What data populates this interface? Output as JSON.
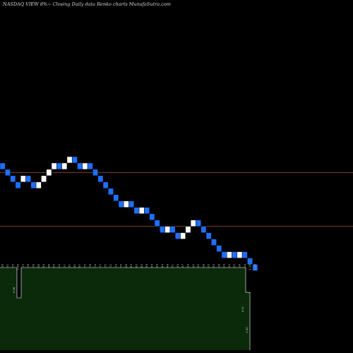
{
  "chart_data": {
    "type": "renko",
    "title": "NASDAQ VIEW 8%~  Closing Daily data  Renko  charts MunafaSutra.com",
    "colors": {
      "background": "#000000",
      "up_brick": "#ffffff",
      "down_brick": "#1f6fff",
      "reference_line": "#a0522d",
      "volume_fill": "#0a2a0a",
      "volume_edge": "#ffffff"
    },
    "reference_lines": [
      5.0,
      3.3
    ],
    "y_range": [
      2.2,
      10.0
    ],
    "bricks": [
      {
        "dir": "down",
        "close": 5.1
      },
      {
        "dir": "down",
        "close": 4.9
      },
      {
        "dir": "down",
        "close": 4.7
      },
      {
        "dir": "down",
        "close": 4.5
      },
      {
        "dir": "up",
        "close": 4.9
      },
      {
        "dir": "down",
        "close": 4.7
      },
      {
        "dir": "down",
        "close": 4.5
      },
      {
        "dir": "up",
        "close": 4.7
      },
      {
        "dir": "up",
        "close": 4.9
      },
      {
        "dir": "up",
        "close": 5.1
      },
      {
        "dir": "up",
        "close": 5.3
      },
      {
        "dir": "down",
        "close": 5.1
      },
      {
        "dir": "up",
        "close": 5.3
      },
      {
        "dir": "up",
        "close": 5.5
      },
      {
        "dir": "down",
        "close": 5.3
      },
      {
        "dir": "down",
        "close": 5.1
      },
      {
        "dir": "up",
        "close": 5.3
      },
      {
        "dir": "down",
        "close": 5.1
      },
      {
        "dir": "down",
        "close": 4.9
      },
      {
        "dir": "down",
        "close": 4.7
      },
      {
        "dir": "down",
        "close": 4.5
      },
      {
        "dir": "down",
        "close": 4.3
      },
      {
        "dir": "down",
        "close": 4.1
      },
      {
        "dir": "down",
        "close": 3.9
      },
      {
        "dir": "up",
        "close": 4.1
      },
      {
        "dir": "down",
        "close": 3.9
      },
      {
        "dir": "down",
        "close": 3.7
      },
      {
        "dir": "up",
        "close": 3.9
      },
      {
        "dir": "down",
        "close": 3.7
      },
      {
        "dir": "down",
        "close": 3.5
      },
      {
        "dir": "down",
        "close": 3.3
      },
      {
        "dir": "down",
        "close": 3.1
      },
      {
        "dir": "up",
        "close": 3.3
      },
      {
        "dir": "down",
        "close": 3.1
      },
      {
        "dir": "down",
        "close": 2.9
      },
      {
        "dir": "up",
        "close": 3.1
      },
      {
        "dir": "up",
        "close": 3.3
      },
      {
        "dir": "up",
        "close": 3.5
      },
      {
        "dir": "down",
        "close": 3.3
      },
      {
        "dir": "down",
        "close": 3.1
      },
      {
        "dir": "down",
        "close": 2.9
      },
      {
        "dir": "down",
        "close": 2.7
      },
      {
        "dir": "down",
        "close": 2.5
      },
      {
        "dir": "down",
        "close": 2.3
      },
      {
        "dir": "up",
        "close": 2.5
      },
      {
        "dir": "down",
        "close": 2.3
      },
      {
        "dir": "up",
        "close": 2.5
      },
      {
        "dir": "down",
        "close": 2.3
      },
      {
        "dir": "down",
        "close": 2.1
      },
      {
        "dir": "down",
        "close": 1.9
      }
    ],
    "x_tick_labels": [
      "2.39",
      "2.31",
      "1.70",
      "1.89",
      "1.73",
      "1.78",
      "1.78",
      "1.98",
      "1.94",
      "1.96",
      "2.09",
      "2.04",
      "2.11",
      "1.92",
      "1.91",
      "1.97",
      "1.74",
      "1.78",
      "1.74",
      "1.77",
      "1.75",
      "1.72",
      "1.73",
      "1.70",
      "1.68",
      "1.63",
      "1.62",
      "1.60",
      "1.59",
      "1.55",
      "1.49",
      "1.44",
      "1.48",
      "1.51",
      "1.45",
      "1.47",
      "1.44",
      "1.42",
      "1.40",
      "1.38",
      "1.35",
      "1.30",
      "1.28",
      "1.29",
      "1.32",
      "1.22",
      "1.26",
      "1.24",
      "1.18",
      "1.08"
    ],
    "volume": {
      "marker_labels": [
        "0.58",
        "0.31",
        "0.30"
      ],
      "levels": [
        1.0,
        0.7,
        0.38
      ]
    }
  }
}
